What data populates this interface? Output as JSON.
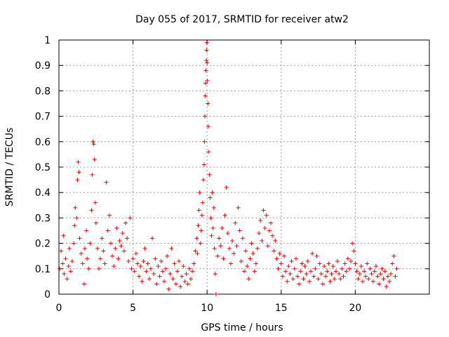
{
  "chart_data": {
    "type": "scatter",
    "title": "Day 055 of 2017, SRMTID for receiver atw2",
    "xlabel": "GPS time / hours",
    "ylabel": "SRMTID / TECUs",
    "xlim": [
      0,
      25
    ],
    "ylim": [
      0,
      1
    ],
    "x_ticks": [
      "0",
      "5",
      "10",
      "15",
      "20"
    ],
    "x_tick_values": [
      0,
      5,
      10,
      15,
      20
    ],
    "y_ticks": [
      "0",
      "0.1",
      "0.2",
      "0.3",
      "0.4",
      "0.5",
      "0.6",
      "0.7",
      "0.8",
      "0.9",
      "1"
    ],
    "y_tick_values": [
      0,
      0.1,
      0.2,
      0.3,
      0.4,
      0.5,
      0.6,
      0.7,
      0.8,
      0.9,
      1
    ],
    "grid": true,
    "marker": "+",
    "color": "#ff0000",
    "series": [
      {
        "name": "atw2",
        "points": [
          [
            0.05,
            0.1
          ],
          [
            0.15,
            0.17
          ],
          [
            0.25,
            0.12
          ],
          [
            0.3,
            0.23
          ],
          [
            0.35,
            0.08
          ],
          [
            0.45,
            0.14
          ],
          [
            0.55,
            0.06
          ],
          [
            0.65,
            0.11
          ],
          [
            0.7,
            0.18
          ],
          [
            0.8,
            0.09
          ],
          [
            0.9,
            0.13
          ],
          [
            1.0,
            0.2
          ],
          [
            1.05,
            0.27
          ],
          [
            1.1,
            0.34
          ],
          [
            1.2,
            0.3
          ],
          [
            1.25,
            0.45
          ],
          [
            1.3,
            0.52
          ],
          [
            1.35,
            0.48
          ],
          [
            1.4,
            0.22
          ],
          [
            1.5,
            0.16
          ],
          [
            1.6,
            0.12
          ],
          [
            1.7,
            0.04
          ],
          [
            1.75,
            0.18
          ],
          [
            1.85,
            0.25
          ],
          [
            1.9,
            0.14
          ],
          [
            2.0,
            0.1
          ],
          [
            2.1,
            0.2
          ],
          [
            2.2,
            0.33
          ],
          [
            2.25,
            0.47
          ],
          [
            2.3,
            0.6
          ],
          [
            2.35,
            0.59
          ],
          [
            2.4,
            0.53
          ],
          [
            2.45,
            0.36
          ],
          [
            2.5,
            0.28
          ],
          [
            2.6,
            0.18
          ],
          [
            2.7,
            0.1
          ],
          [
            2.8,
            0.14
          ],
          [
            2.9,
            0.22
          ],
          [
            3.0,
            0.17
          ],
          [
            3.1,
            0.12
          ],
          [
            3.2,
            0.44
          ],
          [
            3.3,
            0.25
          ],
          [
            3.4,
            0.31
          ],
          [
            3.5,
            0.2
          ],
          [
            3.6,
            0.15
          ],
          [
            3.7,
            0.11
          ],
          [
            3.8,
            0.18
          ],
          [
            3.9,
            0.26
          ],
          [
            4.0,
            0.14
          ],
          [
            4.1,
            0.21
          ],
          [
            4.2,
            0.19
          ],
          [
            4.3,
            0.24
          ],
          [
            4.4,
            0.17
          ],
          [
            4.5,
            0.28
          ],
          [
            4.6,
            0.22
          ],
          [
            4.7,
            0.13
          ],
          [
            4.8,
            0.3
          ],
          [
            4.9,
            0.1
          ],
          [
            5.0,
            0.14
          ],
          [
            5.1,
            0.09
          ],
          [
            5.2,
            0.16
          ],
          [
            5.3,
            0.12
          ],
          [
            5.4,
            0.07
          ],
          [
            5.5,
            0.11
          ],
          [
            5.6,
            0.05
          ],
          [
            5.7,
            0.13
          ],
          [
            5.8,
            0.18
          ],
          [
            5.9,
            0.09
          ],
          [
            6.0,
            0.12
          ],
          [
            6.1,
            0.06
          ],
          [
            6.2,
            0.1
          ],
          [
            6.3,
            0.22
          ],
          [
            6.4,
            0.08
          ],
          [
            6.5,
            0.14
          ],
          [
            6.6,
            0.04
          ],
          [
            6.7,
            0.11
          ],
          [
            6.8,
            0.07
          ],
          [
            6.9,
            0.13
          ],
          [
            7.0,
            0.09
          ],
          [
            7.1,
            0.05
          ],
          [
            7.2,
            0.1
          ],
          [
            7.3,
            0.15
          ],
          [
            7.4,
            0.02
          ],
          [
            7.5,
            0.08
          ],
          [
            7.6,
            0.18
          ],
          [
            7.7,
            0.06
          ],
          [
            7.8,
            0.12
          ],
          [
            7.9,
            0.04
          ],
          [
            8.0,
            0.09
          ],
          [
            8.1,
            0.13
          ],
          [
            8.2,
            0.03
          ],
          [
            8.3,
            0.07
          ],
          [
            8.4,
            0.11
          ],
          [
            8.5,
            0.05
          ],
          [
            8.6,
            0.08
          ],
          [
            8.7,
            0.04
          ],
          [
            8.8,
            0.1
          ],
          [
            8.9,
            0.06
          ],
          [
            9.0,
            0.09
          ],
          [
            9.1,
            0.12
          ],
          [
            9.2,
            0.17
          ],
          [
            9.3,
            0.22
          ],
          [
            9.35,
            0.16
          ],
          [
            9.4,
            0.27
          ],
          [
            9.45,
            0.33
          ],
          [
            9.5,
            0.4
          ],
          [
            9.55,
            0.2
          ],
          [
            9.6,
            0.25
          ],
          [
            9.65,
            0.31
          ],
          [
            9.7,
            0.36
          ],
          [
            9.75,
            0.45
          ],
          [
            9.8,
            0.51
          ],
          [
            9.82,
            0.6
          ],
          [
            9.85,
            0.7
          ],
          [
            9.88,
            0.78
          ],
          [
            9.9,
            0.83
          ],
          [
            9.92,
            0.88
          ],
          [
            9.94,
            0.92
          ],
          [
            9.96,
            0.96
          ],
          [
            9.98,
            0.99
          ],
          [
            10.0,
            0.91
          ],
          [
            10.02,
            0.84
          ],
          [
            10.05,
            0.75
          ],
          [
            10.08,
            0.66
          ],
          [
            10.1,
            0.56
          ],
          [
            10.15,
            0.47
          ],
          [
            10.2,
            0.38
          ],
          [
            10.25,
            0.3
          ],
          [
            10.3,
            0.23
          ],
          [
            10.35,
            0.4
          ],
          [
            10.4,
            0.26
          ],
          [
            10.45,
            0.34
          ],
          [
            10.5,
            0.18
          ],
          [
            10.55,
            0.08
          ],
          [
            10.6,
            0.0
          ],
          [
            10.7,
            0.15
          ],
          [
            10.8,
            0.22
          ],
          [
            10.9,
            0.19
          ],
          [
            11.0,
            0.26
          ],
          [
            11.1,
            0.14
          ],
          [
            11.2,
            0.31
          ],
          [
            11.3,
            0.42
          ],
          [
            11.4,
            0.24
          ],
          [
            11.5,
            0.18
          ],
          [
            11.6,
            0.12
          ],
          [
            11.7,
            0.21
          ],
          [
            11.8,
            0.16
          ],
          [
            11.9,
            0.28
          ],
          [
            12.0,
            0.19
          ],
          [
            12.1,
            0.34
          ],
          [
            12.2,
            0.25
          ],
          [
            12.3,
            0.13
          ],
          [
            12.4,
            0.22
          ],
          [
            12.5,
            0.09
          ],
          [
            12.6,
            0.17
          ],
          [
            12.7,
            0.11
          ],
          [
            12.8,
            0.06
          ],
          [
            12.9,
            0.14
          ],
          [
            13.0,
            0.2
          ],
          [
            13.1,
            0.16
          ],
          [
            13.2,
            0.09
          ],
          [
            13.3,
            0.12
          ],
          [
            13.4,
            0.18
          ],
          [
            13.5,
            0.24
          ],
          [
            13.6,
            0.29
          ],
          [
            13.7,
            0.21
          ],
          [
            13.8,
            0.33
          ],
          [
            13.9,
            0.26
          ],
          [
            14.0,
            0.31
          ],
          [
            14.1,
            0.19
          ],
          [
            14.2,
            0.25
          ],
          [
            14.3,
            0.28
          ],
          [
            14.4,
            0.23
          ],
          [
            14.5,
            0.17
          ],
          [
            14.6,
            0.21
          ],
          [
            14.7,
            0.14
          ],
          [
            14.8,
            0.1
          ],
          [
            14.9,
            0.16
          ],
          [
            15.0,
            0.12
          ],
          [
            15.1,
            0.07
          ],
          [
            15.2,
            0.15
          ],
          [
            15.3,
            0.09
          ],
          [
            15.4,
            0.05
          ],
          [
            15.5,
            0.11
          ],
          [
            15.6,
            0.08
          ],
          [
            15.7,
            0.13
          ],
          [
            15.8,
            0.06
          ],
          [
            15.9,
            0.1
          ],
          [
            16.0,
            0.14
          ],
          [
            16.1,
            0.07
          ],
          [
            16.2,
            0.04
          ],
          [
            16.3,
            0.09
          ],
          [
            16.4,
            0.12
          ],
          [
            16.5,
            0.06
          ],
          [
            16.6,
            0.11
          ],
          [
            16.7,
            0.08
          ],
          [
            16.8,
            0.13
          ],
          [
            16.9,
            0.05
          ],
          [
            17.0,
            0.09
          ],
          [
            17.1,
            0.16
          ],
          [
            17.2,
            0.07
          ],
          [
            17.3,
            0.1
          ],
          [
            17.4,
            0.15
          ],
          [
            17.5,
            0.06
          ],
          [
            17.6,
            0.12
          ],
          [
            17.7,
            0.08
          ],
          [
            17.8,
            0.04
          ],
          [
            17.9,
            0.11
          ],
          [
            18.0,
            0.07
          ],
          [
            18.1,
            0.09
          ],
          [
            18.2,
            0.12
          ],
          [
            18.3,
            0.05
          ],
          [
            18.4,
            0.08
          ],
          [
            18.5,
            0.11
          ],
          [
            18.6,
            0.06
          ],
          [
            18.7,
            0.09
          ],
          [
            18.8,
            0.13
          ],
          [
            18.9,
            0.08
          ],
          [
            19.0,
            0.06
          ],
          [
            19.1,
            0.1
          ],
          [
            19.2,
            0.07
          ],
          [
            19.3,
            0.12
          ],
          [
            19.4,
            0.09
          ],
          [
            19.5,
            0.14
          ],
          [
            19.6,
            0.1
          ],
          [
            19.7,
            0.13
          ],
          [
            19.8,
            0.2
          ],
          [
            19.9,
            0.17
          ],
          [
            20.0,
            0.12
          ],
          [
            20.1,
            0.09
          ],
          [
            20.2,
            0.06
          ],
          [
            20.3,
            0.08
          ],
          [
            20.4,
            0.11
          ],
          [
            20.5,
            0.05
          ],
          [
            20.6,
            0.09
          ],
          [
            20.7,
            0.07
          ],
          [
            20.8,
            0.12
          ],
          [
            20.9,
            0.06
          ],
          [
            21.0,
            0.1
          ],
          [
            21.1,
            0.08
          ],
          [
            21.2,
            0.05
          ],
          [
            21.3,
            0.09
          ],
          [
            21.4,
            0.11
          ],
          [
            21.5,
            0.07
          ],
          [
            21.6,
            0.04
          ],
          [
            21.7,
            0.08
          ],
          [
            21.8,
            0.1
          ],
          [
            21.9,
            0.06
          ],
          [
            22.0,
            0.09
          ],
          [
            22.1,
            0.03
          ],
          [
            22.2,
            0.07
          ],
          [
            22.3,
            0.05
          ],
          [
            22.4,
            0.08
          ],
          [
            22.5,
            0.12
          ],
          [
            22.6,
            0.15
          ],
          [
            22.7,
            0.07
          ],
          [
            22.8,
            0.1
          ]
        ]
      }
    ]
  }
}
